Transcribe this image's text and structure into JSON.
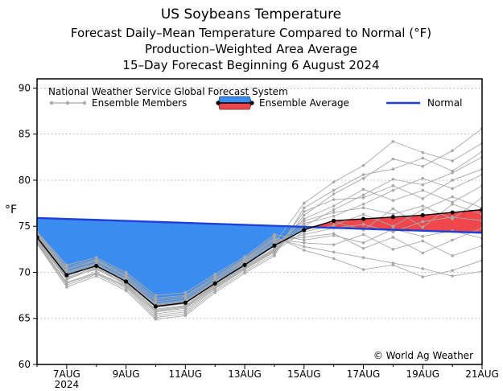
{
  "chart_data": {
    "type": "line",
    "title": "US Soybeans Temperature",
    "subtitle_lines": [
      "Forecast Daily–Mean Temperature Compared to Normal (°F)",
      "Production–Weighted Area Average",
      "15–Day Forecast Beginning 6 August 2024"
    ],
    "ylabel": "°F",
    "ylim": [
      60,
      91
    ],
    "yticks": [
      60,
      65,
      70,
      75,
      80,
      85,
      90
    ],
    "xlim": [
      0,
      15
    ],
    "xticks": [
      {
        "x": 1,
        "label": "7AUG",
        "sublabel": "2024"
      },
      {
        "x": 3,
        "label": "9AUG"
      },
      {
        "x": 5,
        "label": "11AUG"
      },
      {
        "x": 7,
        "label": "13AUG"
      },
      {
        "x": 9,
        "label": "15AUG"
      },
      {
        "x": 11,
        "label": "17AUG"
      },
      {
        "x": 13,
        "label": "19AUG"
      },
      {
        "x": 15,
        "label": "21AUG"
      }
    ],
    "model_label": "National Weather Service Global Forecast System",
    "legend": {
      "members": "Ensemble Members",
      "average": "Ensemble Average",
      "normal": "Normal"
    },
    "copyright": "© World Ag Weather",
    "colors": {
      "below_fill": "#3b8cf0",
      "above_fill": "#f0474d",
      "normal_line": "#1f3fd6",
      "member_line": "#a9a9a9",
      "average_line": "#000000"
    },
    "normal": {
      "x": [
        0,
        15
      ],
      "y": [
        75.9,
        74.3
      ]
    },
    "ensemble_average": {
      "x": [
        0,
        1,
        2,
        3,
        4,
        5,
        6,
        7,
        8,
        9,
        10,
        11,
        12,
        13,
        14,
        15
      ],
      "y": [
        73.8,
        69.7,
        70.7,
        69.0,
        66.3,
        66.7,
        68.8,
        70.8,
        72.9,
        74.6,
        75.6,
        75.8,
        76.0,
        76.2,
        76.5,
        76.8
      ]
    },
    "ensemble_members": [
      [
        73.5,
        69.2,
        70.5,
        68.8,
        65.8,
        66.2,
        68.5,
        70.6,
        72.5,
        75.0,
        76.8,
        78.4,
        80.1,
        79.5,
        80.8,
        82.5
      ],
      [
        74.0,
        70.1,
        71.0,
        69.3,
        66.6,
        67.0,
        69.1,
        71.2,
        73.4,
        73.8,
        74.2,
        72.6,
        73.8,
        72.1,
        73.5,
        74.8
      ],
      [
        73.2,
        68.6,
        69.8,
        68.2,
        65.1,
        65.5,
        68.0,
        70.1,
        72.0,
        76.2,
        78.5,
        80.2,
        82.3,
        81.5,
        83.2,
        85.6
      ],
      [
        74.3,
        70.6,
        71.4,
        69.8,
        67.2,
        67.5,
        69.6,
        71.5,
        73.9,
        72.4,
        71.5,
        70.3,
        70.8,
        69.5,
        70.2,
        71.3
      ],
      [
        73.7,
        69.5,
        70.3,
        68.9,
        66.0,
        66.4,
        68.7,
        70.9,
        72.8,
        75.8,
        77.2,
        79.0,
        77.8,
        78.9,
        77.6,
        79.4
      ],
      [
        73.4,
        68.9,
        70.0,
        68.5,
        65.5,
        65.9,
        68.3,
        70.4,
        72.3,
        74.4,
        75.1,
        76.3,
        75.0,
        76.8,
        78.2,
        77.0
      ],
      [
        74.1,
        70.3,
        71.2,
        69.5,
        66.8,
        67.2,
        69.3,
        71.3,
        73.6,
        73.2,
        73.0,
        74.1,
        72.5,
        73.4,
        71.8,
        72.9
      ],
      [
        73.9,
        69.9,
        70.8,
        69.2,
        66.5,
        66.9,
        69.0,
        71.0,
        73.1,
        77.5,
        79.8,
        81.6,
        84.2,
        83.0,
        82.1,
        84.0
      ],
      [
        73.6,
        69.4,
        70.6,
        68.7,
        65.9,
        66.3,
        68.6,
        70.7,
        72.6,
        75.3,
        76.1,
        77.4,
        78.9,
        80.2,
        79.1,
        80.6
      ],
      [
        74.2,
        70.4,
        71.3,
        69.6,
        67.0,
        67.4,
        69.4,
        71.4,
        73.7,
        72.8,
        72.2,
        71.6,
        71.0,
        70.4,
        69.6,
        70.1
      ],
      [
        73.3,
        68.8,
        69.9,
        68.4,
        65.3,
        65.7,
        68.2,
        70.3,
        72.2,
        76.6,
        77.9,
        78.1,
        79.4,
        78.0,
        80.0,
        81.2
      ],
      [
        74.0,
        70.0,
        70.9,
        69.1,
        66.4,
        66.8,
        68.9,
        71.1,
        73.2,
        74.1,
        74.8,
        75.2,
        74.4,
        75.5,
        76.0,
        75.6
      ],
      [
        73.8,
        69.7,
        70.7,
        69.0,
        66.2,
        66.6,
        68.8,
        70.8,
        72.9,
        75.6,
        76.5,
        77.0,
        76.3,
        77.2,
        75.8,
        78.1
      ],
      [
        73.5,
        69.3,
        70.4,
        68.6,
        65.7,
        66.1,
        68.4,
        70.5,
        72.4,
        74.8,
        75.5,
        74.6,
        76.9,
        74.9,
        77.4,
        76.3
      ],
      [
        74.4,
        70.8,
        71.6,
        70.0,
        67.5,
        67.8,
        69.8,
        71.7,
        74.1,
        73.5,
        74.0,
        73.2,
        74.7,
        73.9,
        74.5,
        73.7
      ],
      [
        73.1,
        68.4,
        69.6,
        68.0,
        64.9,
        65.3,
        67.8,
        69.9,
        71.8,
        77.0,
        78.9,
        80.6,
        81.2,
        82.4,
        81.0,
        83.1
      ]
    ]
  }
}
